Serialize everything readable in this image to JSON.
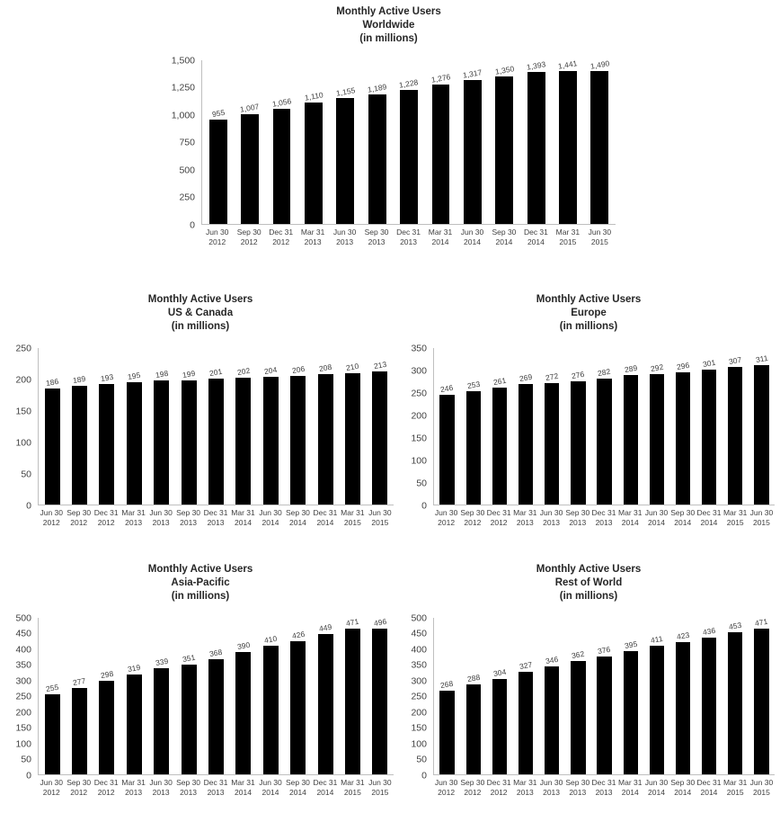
{
  "page": {
    "background": "#ffffff",
    "text_color": "#404040",
    "title_color": "#262626",
    "axis_line_color": "#bfbfbf"
  },
  "chart_data": [
    {
      "type": "bar",
      "title": "Monthly Active Users Worldwide (in millions)",
      "title_lines": [
        "Monthly Active Users",
        "Worldwide",
        "(in millions)"
      ],
      "xlabel": "",
      "ylabel": "",
      "categories": [
        "Jun 30 2012",
        "Sep 30 2012",
        "Dec 31 2012",
        "Mar 31 2013",
        "Jun 30 2013",
        "Sep 30 2013",
        "Dec 31 2013",
        "Mar 31 2014",
        "Jun 30 2014",
        "Sep 30 2014",
        "Dec 31 2014",
        "Mar 31 2015",
        "Jun 30 2015"
      ],
      "values": [
        955,
        1007,
        1056,
        1110,
        1155,
        1189,
        1228,
        1276,
        1317,
        1350,
        1393,
        1441,
        1490
      ],
      "labels": [
        "955",
        "1,007",
        "1,056",
        "1,110",
        "1,155",
        "1,189",
        "1,228",
        "1,276",
        "1,317",
        "1,350",
        "1,393",
        "1,441",
        "1,490"
      ],
      "ylim": [
        0,
        1500
      ],
      "ytick_values": [
        0,
        250,
        500,
        750,
        1000,
        1250,
        1500
      ],
      "ytick_labels": [
        "0",
        "250",
        "500",
        "750",
        "1,000",
        "1,250",
        "1,500"
      ],
      "bar_color": "#000000",
      "grid": false,
      "legend": false
    },
    {
      "type": "bar",
      "title": "Monthly Active Users US & Canada (in millions)",
      "title_lines": [
        "Monthly Active Users",
        "US & Canada",
        "(in millions)"
      ],
      "xlabel": "",
      "ylabel": "",
      "categories": [
        "Jun 30 2012",
        "Sep 30 2012",
        "Dec 31 2012",
        "Mar 31 2013",
        "Jun 30 2013",
        "Sep 30 2013",
        "Dec 31 2013",
        "Mar 31 2014",
        "Jun 30 2014",
        "Sep 30 2014",
        "Dec 31 2014",
        "Mar 31 2015",
        "Jun 30 2015"
      ],
      "values": [
        186,
        189,
        193,
        195,
        198,
        199,
        201,
        202,
        204,
        206,
        208,
        210,
        213
      ],
      "labels": [
        "186",
        "189",
        "193",
        "195",
        "198",
        "199",
        "201",
        "202",
        "204",
        "206",
        "208",
        "210",
        "213"
      ],
      "ylim": [
        0,
        250
      ],
      "ytick_values": [
        0,
        50,
        100,
        150,
        200,
        250
      ],
      "ytick_labels": [
        "0",
        "50",
        "100",
        "150",
        "200",
        "250"
      ],
      "bar_color": "#000000",
      "grid": false,
      "legend": false
    },
    {
      "type": "bar",
      "title": "Monthly Active Users Europe (in millions)",
      "title_lines": [
        "Monthly Active Users",
        "Europe",
        "(in millions)"
      ],
      "xlabel": "",
      "ylabel": "",
      "categories": [
        "Jun 30 2012",
        "Sep 30 2012",
        "Dec 31 2012",
        "Mar 31 2013",
        "Jun 30 2013",
        "Sep 30 2013",
        "Dec 31 2013",
        "Mar 31 2014",
        "Jun 30 2014",
        "Sep 30 2014",
        "Dec 31 2014",
        "Mar 31 2015",
        "Jun 30 2015"
      ],
      "values": [
        246,
        253,
        261,
        269,
        272,
        276,
        282,
        289,
        292,
        296,
        301,
        307,
        311
      ],
      "labels": [
        "246",
        "253",
        "261",
        "269",
        "272",
        "276",
        "282",
        "289",
        "292",
        "296",
        "301",
        "307",
        "311"
      ],
      "ylim": [
        0,
        350
      ],
      "ytick_values": [
        0,
        50,
        100,
        150,
        200,
        250,
        300,
        350
      ],
      "ytick_labels": [
        "0",
        "50",
        "100",
        "150",
        "200",
        "250",
        "300",
        "350"
      ],
      "bar_color": "#000000",
      "grid": false,
      "legend": false
    },
    {
      "type": "bar",
      "title": "Monthly Active Users Asia-Pacific (in millions)",
      "title_lines": [
        "Monthly Active Users",
        "Asia-Pacific",
        "(in millions)"
      ],
      "xlabel": "",
      "ylabel": "",
      "categories": [
        "Jun 30 2012",
        "Sep 30 2012",
        "Dec 31 2012",
        "Mar 31 2013",
        "Jun 30 2013",
        "Sep 30 2013",
        "Dec 31 2013",
        "Mar 31 2014",
        "Jun 30 2014",
        "Sep 30 2014",
        "Dec 31 2014",
        "Mar 31 2015",
        "Jun 30 2015"
      ],
      "values": [
        255,
        277,
        298,
        319,
        339,
        351,
        368,
        390,
        410,
        426,
        449,
        471,
        496
      ],
      "labels": [
        "255",
        "277",
        "298",
        "319",
        "339",
        "351",
        "368",
        "390",
        "410",
        "426",
        "449",
        "471",
        "496"
      ],
      "ylim": [
        0,
        500
      ],
      "ytick_values": [
        0,
        50,
        100,
        150,
        200,
        250,
        300,
        350,
        400,
        450,
        500
      ],
      "ytick_labels": [
        "0",
        "50",
        "100",
        "150",
        "200",
        "250",
        "300",
        "350",
        "400",
        "450",
        "500"
      ],
      "bar_color": "#000000",
      "grid": false,
      "legend": false
    },
    {
      "type": "bar",
      "title": "Monthly Active Users Rest of World (in millions)",
      "title_lines": [
        "Monthly Active Users",
        "Rest of World",
        "(in millions)"
      ],
      "xlabel": "",
      "ylabel": "",
      "categories": [
        "Jun 30 2012",
        "Sep 30 2012",
        "Dec 31 2012",
        "Mar 31 2013",
        "Jun 30 2013",
        "Sep 30 2013",
        "Dec 31 2013",
        "Mar 31 2014",
        "Jun 30 2014",
        "Sep 30 2014",
        "Dec 31 2014",
        "Mar 31 2015",
        "Jun 30 2015"
      ],
      "values": [
        268,
        288,
        304,
        327,
        346,
        362,
        376,
        395,
        411,
        423,
        436,
        453,
        471
      ],
      "labels": [
        "268",
        "288",
        "304",
        "327",
        "346",
        "362",
        "376",
        "395",
        "411",
        "423",
        "436",
        "453",
        "471"
      ],
      "ylim": [
        0,
        500
      ],
      "ytick_values": [
        0,
        50,
        100,
        150,
        200,
        250,
        300,
        350,
        400,
        450,
        500
      ],
      "ytick_labels": [
        "0",
        "50",
        "100",
        "150",
        "200",
        "250",
        "300",
        "350",
        "400",
        "450",
        "500"
      ],
      "bar_color": "#000000",
      "grid": false,
      "legend": false
    }
  ]
}
